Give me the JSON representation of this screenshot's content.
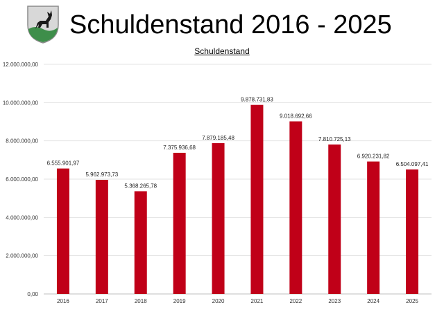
{
  "header": {
    "title": "Schuldenstand 2016 - 2025"
  },
  "colors": {
    "bar": "#C00018",
    "gridline": "#E3E3E3",
    "axis": "#BFBFBF",
    "crest_silver": "#D8D8D8",
    "crest_green": "#3E8E4A",
    "crest_black": "#1A1A1A"
  },
  "chart_data": {
    "type": "bar",
    "title": "Schuldenstand",
    "xlabel": "",
    "ylabel": "",
    "categories": [
      "2016",
      "2017",
      "2018",
      "2019",
      "2020",
      "2021",
      "2022",
      "2023",
      "2024",
      "2025"
    ],
    "values": [
      6555901.97,
      5962973.73,
      5368265.78,
      7375936.68,
      7879185.48,
      9878731.83,
      9018692.66,
      7810725.13,
      6920231.82,
      6504097.41
    ],
    "value_labels": [
      "6.555.901,97",
      "5.962.973,73",
      "5.368.265,78",
      "7.375.936,68",
      "7.879.185,48",
      "9.878.731,83",
      "9.018.692,66",
      "7.810.725,13",
      "6.920.231,82",
      "6.504.097,41"
    ],
    "ylim": [
      0,
      12000000
    ],
    "yticks": [
      0,
      2000000,
      4000000,
      6000000,
      8000000,
      10000000,
      12000000
    ],
    "ytick_labels": [
      "0,00",
      "2.000.000,00",
      "4.000.000,00",
      "6.000.000,00",
      "8.000.000,00",
      "10.000.000,00",
      "12.000.000,00"
    ],
    "grid": true,
    "legend": "none"
  }
}
